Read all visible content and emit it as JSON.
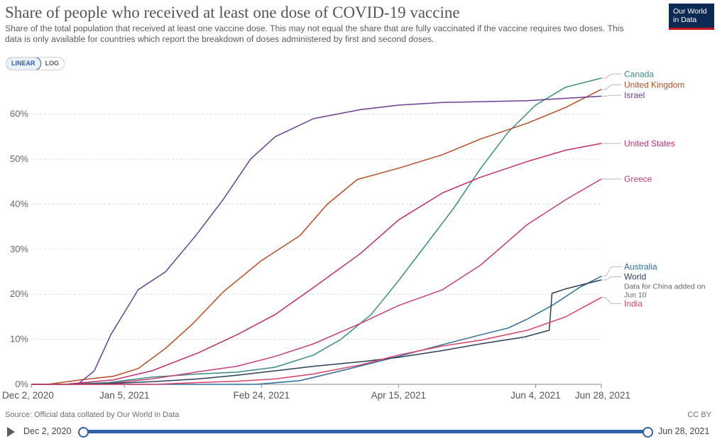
{
  "header": {
    "title": "Share of people who received at least one dose of COVID-19 vaccine",
    "subtitle": "Share of the total population that received at least one vaccine dose. This may not equal the share that are fully vaccinated if the vaccine requires two doses. This data is only available for countries which report the breakdown of doses administered by first and second doses.",
    "logo_line1": "Our World",
    "logo_line2": "in Data"
  },
  "scale_toggle": {
    "linear_label": "LINEAR",
    "log_label": "LOG",
    "selected": "LINEAR"
  },
  "footer": {
    "source": "Source: Official data collated by Our World in Data",
    "license": "CC BY"
  },
  "timeline": {
    "start_label": "Dec 2, 2020",
    "end_label": "Jun 28, 2021",
    "range_start_fraction": 0,
    "range_end_fraction": 1
  },
  "chart_data": {
    "type": "line",
    "title": "Share of people who received at least one dose of COVID-19 vaccine",
    "x_range": [
      "2020-12-02",
      "2021-06-28"
    ],
    "ylim": [
      0,
      68
    ],
    "y_ticks": [
      0,
      10,
      20,
      30,
      40,
      50,
      60
    ],
    "y_tick_labels": [
      "0%",
      "10%",
      "20%",
      "30%",
      "40%",
      "50%",
      "60%"
    ],
    "x_ticks": [
      "2020-12-02",
      "2021-01-05",
      "2021-02-24",
      "2021-04-15",
      "2021-06-04",
      "2021-06-28"
    ],
    "x_tick_labels": [
      "Dec 2, 2020",
      "Jan 5, 2021",
      "Feb 24, 2021",
      "Apr 15, 2021",
      "Jun 4, 2021",
      "Jun 28, 2021"
    ],
    "grid": "horizontal dashed",
    "legend": "labels at line ends (right)",
    "series": [
      {
        "name": "Canada",
        "color": "#3a8a86",
        "points": [
          [
            "2020-12-14",
            0
          ],
          [
            "2020-12-30",
            0.4
          ],
          [
            "2021-01-15",
            1.6
          ],
          [
            "2021-02-01",
            2.3
          ],
          [
            "2021-02-15",
            2.7
          ],
          [
            "2021-03-01",
            3.8
          ],
          [
            "2021-03-15",
            6.5
          ],
          [
            "2021-03-25",
            10
          ],
          [
            "2021-04-05",
            15.5
          ],
          [
            "2021-04-15",
            23
          ],
          [
            "2021-04-25",
            31
          ],
          [
            "2021-05-05",
            39
          ],
          [
            "2021-05-15",
            48
          ],
          [
            "2021-05-25",
            56
          ],
          [
            "2021-06-04",
            62
          ],
          [
            "2021-06-15",
            66
          ],
          [
            "2021-06-28",
            68
          ]
        ]
      },
      {
        "name": "United Kingdom",
        "color": "#b84c24",
        "points": [
          [
            "2020-12-08",
            0
          ],
          [
            "2020-12-20",
            1
          ],
          [
            "2021-01-01",
            1.8
          ],
          [
            "2021-01-10",
            3.5
          ],
          [
            "2021-01-20",
            8
          ],
          [
            "2021-01-30",
            13.5
          ],
          [
            "2021-02-10",
            20.5
          ],
          [
            "2021-02-24",
            27.5
          ],
          [
            "2021-03-10",
            33
          ],
          [
            "2021-03-20",
            40
          ],
          [
            "2021-03-31",
            45.5
          ],
          [
            "2021-04-15",
            48
          ],
          [
            "2021-05-01",
            51
          ],
          [
            "2021-05-15",
            54.5
          ],
          [
            "2021-06-01",
            58
          ],
          [
            "2021-06-15",
            61.5
          ],
          [
            "2021-06-28",
            65.5
          ]
        ]
      },
      {
        "name": "Israel",
        "color": "#6d3e91",
        "points": [
          [
            "2020-12-19",
            0
          ],
          [
            "2020-12-25",
            3
          ],
          [
            "2020-12-31",
            11
          ],
          [
            "2021-01-05",
            16
          ],
          [
            "2021-01-10",
            21
          ],
          [
            "2021-01-20",
            25
          ],
          [
            "2021-01-31",
            33
          ],
          [
            "2021-02-10",
            41
          ],
          [
            "2021-02-20",
            50
          ],
          [
            "2021-03-01",
            55
          ],
          [
            "2021-03-15",
            59
          ],
          [
            "2021-04-01",
            61
          ],
          [
            "2021-04-15",
            62
          ],
          [
            "2021-05-01",
            62.6
          ],
          [
            "2021-06-01",
            63
          ],
          [
            "2021-06-28",
            64
          ]
        ]
      },
      {
        "name": "United States",
        "color": "#be2e6a",
        "points": [
          [
            "2020-12-14",
            0
          ],
          [
            "2021-01-01",
            1
          ],
          [
            "2021-01-15",
            3
          ],
          [
            "2021-02-01",
            7
          ],
          [
            "2021-02-15",
            11
          ],
          [
            "2021-03-01",
            15.5
          ],
          [
            "2021-03-15",
            21.5
          ],
          [
            "2021-04-01",
            29
          ],
          [
            "2021-04-15",
            36.5
          ],
          [
            "2021-05-01",
            42.5
          ],
          [
            "2021-05-15",
            46
          ],
          [
            "2021-06-01",
            49.5
          ],
          [
            "2021-06-15",
            52
          ],
          [
            "2021-06-28",
            53.5
          ]
        ]
      },
      {
        "name": "Greece",
        "color": "#c5407c",
        "points": [
          [
            "2020-12-27",
            0
          ],
          [
            "2021-01-15",
            1.2
          ],
          [
            "2021-02-01",
            2.8
          ],
          [
            "2021-02-15",
            4
          ],
          [
            "2021-03-01",
            6.2
          ],
          [
            "2021-03-15",
            9
          ],
          [
            "2021-04-01",
            13.5
          ],
          [
            "2021-04-15",
            17.5
          ],
          [
            "2021-05-01",
            21
          ],
          [
            "2021-05-15",
            26.5
          ],
          [
            "2021-06-01",
            35.5
          ],
          [
            "2021-06-15",
            41
          ],
          [
            "2021-06-28",
            45.6
          ]
        ]
      },
      {
        "name": "Australia",
        "color": "#2f6d9a",
        "points": [
          [
            "2021-02-22",
            0
          ],
          [
            "2021-03-10",
            0.8
          ],
          [
            "2021-03-25",
            3
          ],
          [
            "2021-04-15",
            6.2
          ],
          [
            "2021-05-01",
            8.8
          ],
          [
            "2021-05-15",
            11
          ],
          [
            "2021-05-25",
            12.5
          ],
          [
            "2021-06-01",
            14.5
          ],
          [
            "2021-06-10",
            17.5
          ],
          [
            "2021-06-20",
            21.5
          ],
          [
            "2021-06-28",
            24
          ]
        ]
      },
      {
        "name": "World",
        "color": "#2e3e5a",
        "points": [
          [
            "2020-12-14",
            0
          ],
          [
            "2021-01-01",
            0.2
          ],
          [
            "2021-01-15",
            0.6
          ],
          [
            "2021-02-01",
            1.2
          ],
          [
            "2021-02-15",
            2
          ],
          [
            "2021-03-01",
            3
          ],
          [
            "2021-03-15",
            4
          ],
          [
            "2021-04-01",
            5
          ],
          [
            "2021-04-15",
            6
          ],
          [
            "2021-05-01",
            7.5
          ],
          [
            "2021-05-15",
            9
          ],
          [
            "2021-05-31",
            10.5
          ],
          [
            "2021-06-09",
            12
          ],
          [
            "2021-06-10",
            20.2
          ],
          [
            "2021-06-15",
            21.2
          ],
          [
            "2021-06-28",
            23.2
          ]
        ]
      },
      {
        "name": "India",
        "color": "#d9406a",
        "points": [
          [
            "2021-01-16",
            0
          ],
          [
            "2021-02-01",
            0.4
          ],
          [
            "2021-02-15",
            0.7
          ],
          [
            "2021-03-01",
            1.2
          ],
          [
            "2021-03-15",
            2.3
          ],
          [
            "2021-04-01",
            4.3
          ],
          [
            "2021-04-15",
            6.5
          ],
          [
            "2021-05-01",
            8.5
          ],
          [
            "2021-05-15",
            9.8
          ],
          [
            "2021-06-01",
            12
          ],
          [
            "2021-06-15",
            15
          ],
          [
            "2021-06-28",
            19.3
          ]
        ]
      }
    ],
    "labels": [
      {
        "text": "Canada",
        "series": "Canada",
        "anchor": 68.9
      },
      {
        "text": "United Kingdom",
        "series": "United Kingdom",
        "anchor": 66.5
      },
      {
        "text": "Israel",
        "series": "Israel",
        "anchor": 64.2
      },
      {
        "text": "United States",
        "series": "United States",
        "anchor": 53.5
      },
      {
        "text": "Greece",
        "series": "Greece",
        "anchor": 45.6
      },
      {
        "text": "Australia",
        "series": "Australia",
        "anchor": 26.1
      },
      {
        "text": "World",
        "series": "World",
        "anchor": 23.9
      },
      {
        "text": "India",
        "series": "India",
        "anchor": 17.9
      }
    ],
    "annotation": {
      "lines": [
        "Data for China added on",
        "Jun 10"
      ],
      "series": "World"
    }
  }
}
